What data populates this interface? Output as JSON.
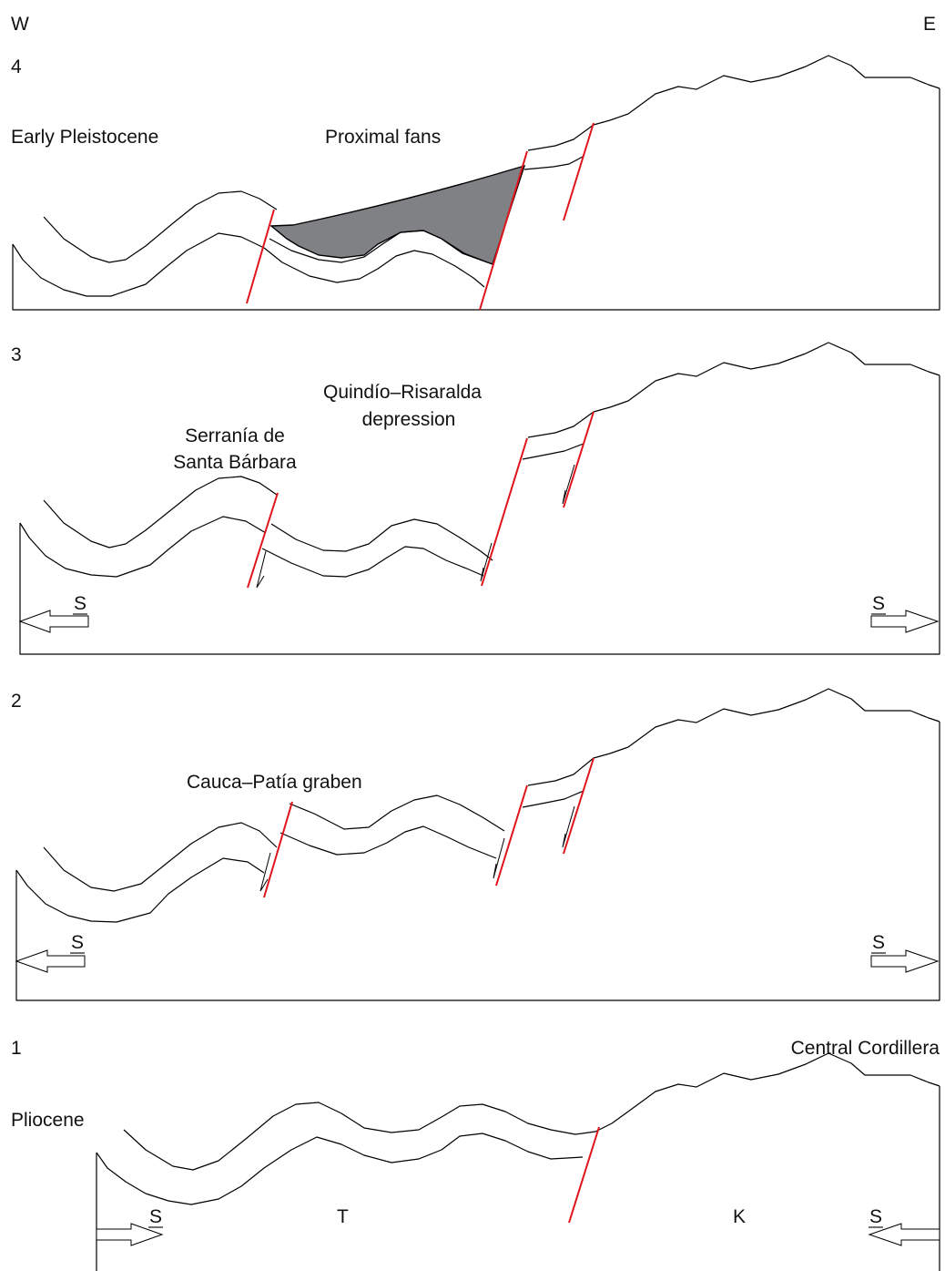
{
  "compass": {
    "west": "W",
    "east": "E"
  },
  "panels": [
    {
      "number": "4",
      "age": "Early Pleistocene",
      "feature": "Proximal fans"
    },
    {
      "number": "3",
      "feature_line1": "Serranía de",
      "feature_line2": "Santa Bárbara",
      "feature2_line1": "Quindío–Risaralda",
      "feature2_line2": "depression",
      "stress_left": "S",
      "stress_right": "S"
    },
    {
      "number": "2",
      "feature": "Cauca–Patía graben",
      "stress_left": "S",
      "stress_right": "S"
    },
    {
      "number": "1",
      "age": "Pliocene",
      "feature": "Central Cordillera",
      "unit_left": "T",
      "unit_right": "K",
      "stress_left": "S",
      "stress_right": "S"
    }
  ],
  "colors": {
    "fault": "#e0141b",
    "fan_fill": "#808184",
    "outline": "#000000"
  }
}
